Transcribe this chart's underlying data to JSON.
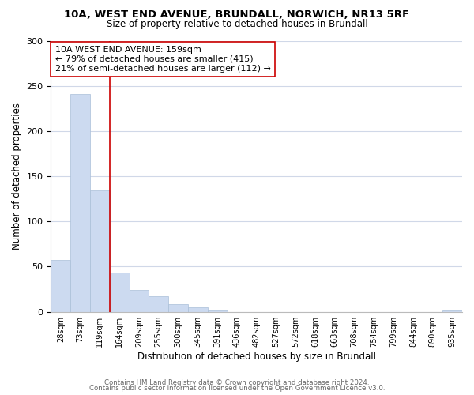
{
  "title": "10A, WEST END AVENUE, BRUNDALL, NORWICH, NR13 5RF",
  "subtitle": "Size of property relative to detached houses in Brundall",
  "xlabel": "Distribution of detached houses by size in Brundall",
  "ylabel": "Number of detached properties",
  "bar_labels": [
    "28sqm",
    "73sqm",
    "119sqm",
    "164sqm",
    "209sqm",
    "255sqm",
    "300sqm",
    "345sqm",
    "391sqm",
    "436sqm",
    "482sqm",
    "527sqm",
    "572sqm",
    "618sqm",
    "663sqm",
    "708sqm",
    "754sqm",
    "799sqm",
    "844sqm",
    "890sqm",
    "935sqm"
  ],
  "bar_values": [
    57,
    241,
    134,
    43,
    24,
    17,
    8,
    5,
    1,
    0,
    0,
    0,
    0,
    0,
    0,
    0,
    0,
    0,
    0,
    0,
    1
  ],
  "bar_color": "#ccdaf0",
  "bar_edge_color": "#aabfd8",
  "property_line_color": "#cc0000",
  "ylim": [
    0,
    300
  ],
  "yticks": [
    0,
    50,
    100,
    150,
    200,
    250,
    300
  ],
  "annotation_text": "10A WEST END AVENUE: 159sqm\n← 79% of detached houses are smaller (415)\n21% of semi-detached houses are larger (112) →",
  "annotation_box_color": "#ffffff",
  "annotation_box_edge": "#cc0000",
  "footer_line1": "Contains HM Land Registry data © Crown copyright and database right 2024.",
  "footer_line2": "Contains public sector information licensed under the Open Government Licence v3.0.",
  "background_color": "#ffffff",
  "grid_color": "#d0d8e8"
}
